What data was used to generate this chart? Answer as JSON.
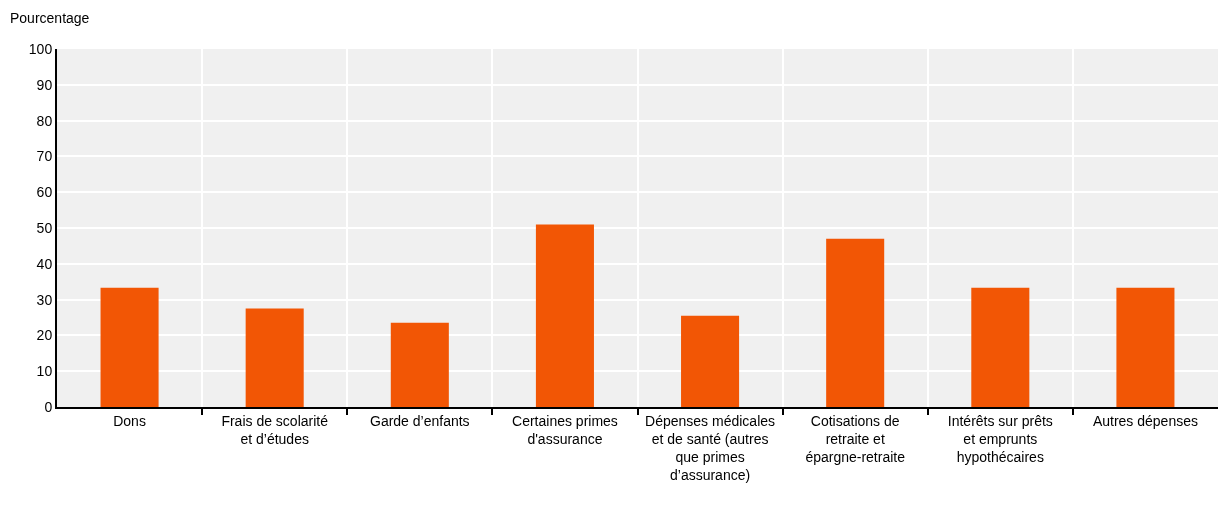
{
  "chart_data": {
    "type": "bar",
    "ylabel": "Pourcentage",
    "categories": [
      "Dons",
      "Frais de scolarité et d’études",
      "Garde d’enfants",
      "Certaines primes d'assurance",
      "Dépenses médicales et de santé (autres que primes d’assurance)",
      "Cotisations de retraite et épargne-retraite",
      "Intérêts sur prêts et emprunts hypothécaires",
      "Autres dépenses"
    ],
    "values": [
      33.3,
      27.5,
      23.5,
      51,
      25.5,
      47,
      33.3,
      33.3
    ],
    "color": "#f25605",
    "ylim": [
      0,
      100
    ],
    "yticks": [
      0,
      10,
      20,
      30,
      40,
      50,
      60,
      70,
      80,
      90,
      100
    ],
    "grid": true
  }
}
